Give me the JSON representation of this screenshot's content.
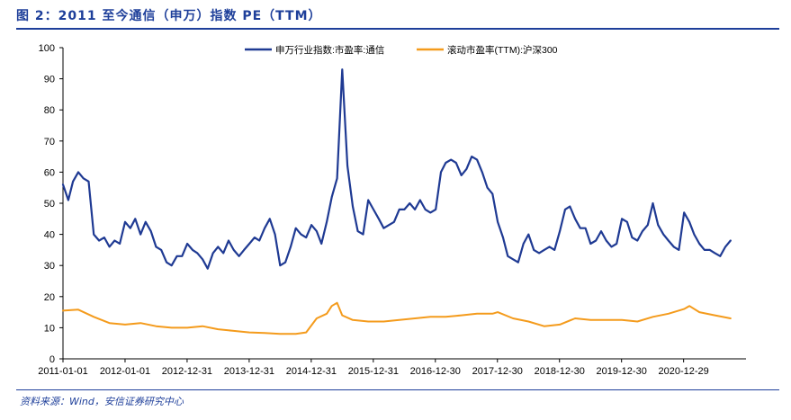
{
  "figure": {
    "title": "图 2：2011 至今通信（申万）指数 PE（TTM）",
    "source": "资料来源：Wind，安信证券研究中心"
  },
  "colors": {
    "series1": "#1f3a93",
    "series2": "#f49b1c",
    "title": "#1e3f9a"
  },
  "chart_data": {
    "type": "line",
    "ylim": [
      0,
      100
    ],
    "yticks": [
      0,
      10,
      20,
      30,
      40,
      50,
      60,
      70,
      80,
      90,
      100
    ],
    "xlim": [
      "2011-01-01",
      "2021-12-31"
    ],
    "xticks": [
      "2011-01-01",
      "2012-01-01",
      "2012-12-31",
      "2013-12-31",
      "2014-12-31",
      "2015-12-31",
      "2016-12-30",
      "2017-12-30",
      "2018-12-30",
      "2019-12-30",
      "2020-12-29"
    ],
    "legend_position": "top-center",
    "grid": false,
    "series": [
      {
        "name": "申万行业指数:市盈率:通信",
        "x": [
          "2011-01-01",
          "2011-02-01",
          "2011-03-01",
          "2011-04-01",
          "2011-05-01",
          "2011-06-01",
          "2011-07-01",
          "2011-08-01",
          "2011-09-01",
          "2011-10-01",
          "2011-11-01",
          "2011-12-01",
          "2012-01-01",
          "2012-02-01",
          "2012-03-01",
          "2012-04-01",
          "2012-05-01",
          "2012-06-01",
          "2012-07-01",
          "2012-08-01",
          "2012-09-01",
          "2012-10-01",
          "2012-11-01",
          "2012-12-01",
          "2013-01-01",
          "2013-02-01",
          "2013-03-01",
          "2013-04-01",
          "2013-05-01",
          "2013-06-01",
          "2013-07-01",
          "2013-08-01",
          "2013-09-01",
          "2013-10-01",
          "2013-11-01",
          "2013-12-01",
          "2014-01-01",
          "2014-02-01",
          "2014-03-01",
          "2014-04-01",
          "2014-05-01",
          "2014-06-01",
          "2014-07-01",
          "2014-08-01",
          "2014-09-01",
          "2014-10-01",
          "2014-11-01",
          "2014-12-01",
          "2015-01-01",
          "2015-02-01",
          "2015-03-01",
          "2015-04-01",
          "2015-05-01",
          "2015-06-01",
          "2015-07-01",
          "2015-08-01",
          "2015-09-01",
          "2015-10-01",
          "2015-11-01",
          "2015-12-01",
          "2016-01-01",
          "2016-02-01",
          "2016-03-01",
          "2016-04-01",
          "2016-05-01",
          "2016-06-01",
          "2016-07-01",
          "2016-08-01",
          "2016-09-01",
          "2016-10-01",
          "2016-11-01",
          "2016-12-01",
          "2017-01-01",
          "2017-02-01",
          "2017-03-01",
          "2017-04-01",
          "2017-05-01",
          "2017-06-01",
          "2017-07-01",
          "2017-08-01",
          "2017-09-01",
          "2017-10-01",
          "2017-11-01",
          "2017-12-01",
          "2018-01-01",
          "2018-02-01",
          "2018-03-01",
          "2018-04-01",
          "2018-05-01",
          "2018-06-01",
          "2018-07-01",
          "2018-08-01",
          "2018-09-01",
          "2018-10-01",
          "2018-11-01",
          "2018-12-01",
          "2019-01-01",
          "2019-02-01",
          "2019-03-01",
          "2019-04-01",
          "2019-05-01",
          "2019-06-01",
          "2019-07-01",
          "2019-08-01",
          "2019-09-01",
          "2019-10-01",
          "2019-11-01",
          "2019-12-01",
          "2020-01-01",
          "2020-02-01",
          "2020-03-01",
          "2020-04-01",
          "2020-05-01",
          "2020-06-01",
          "2020-07-01",
          "2020-08-01",
          "2020-09-01",
          "2020-10-01",
          "2020-11-01",
          "2020-12-01",
          "2021-01-01",
          "2021-02-01",
          "2021-03-01",
          "2021-04-01",
          "2021-05-01",
          "2021-06-01",
          "2021-07-01",
          "2021-08-01",
          "2021-09-01",
          "2021-10-01"
        ],
        "values": [
          56,
          51,
          57,
          60,
          58,
          57,
          40,
          38,
          39,
          36,
          38,
          37,
          44,
          42,
          45,
          40,
          44,
          41,
          36,
          35,
          31,
          30,
          33,
          33,
          37,
          35,
          34,
          32,
          29,
          34,
          36,
          34,
          38,
          35,
          33,
          35,
          37,
          39,
          38,
          42,
          45,
          40,
          30,
          31,
          36,
          42,
          40,
          39,
          43,
          41,
          37,
          44,
          52,
          58,
          93,
          62,
          49,
          41,
          40,
          51,
          48,
          45,
          42,
          43,
          44,
          48,
          48,
          50,
          48,
          51,
          48,
          47,
          48,
          60,
          63,
          64,
          63,
          59,
          61,
          65,
          64,
          60,
          55,
          53,
          44,
          39,
          33,
          32,
          31,
          37,
          40,
          35,
          34,
          35,
          36,
          35,
          41,
          48,
          49,
          45,
          42,
          42,
          37,
          38,
          41,
          38,
          36,
          37,
          45,
          44,
          39,
          38,
          41,
          43,
          50,
          43,
          40,
          38,
          36,
          35,
          47,
          44,
          40,
          37,
          35,
          35,
          34,
          33,
          36,
          38
        ]
      },
      {
        "name": "滚动市盈率(TTM):沪深300",
        "x": [
          "2011-01-01",
          "2011-04-01",
          "2011-07-01",
          "2011-10-01",
          "2012-01-01",
          "2012-04-01",
          "2012-07-01",
          "2012-10-01",
          "2013-01-01",
          "2013-04-01",
          "2013-07-01",
          "2013-10-01",
          "2014-01-01",
          "2014-04-01",
          "2014-07-01",
          "2014-10-01",
          "2014-12-01",
          "2015-02-01",
          "2015-04-01",
          "2015-05-01",
          "2015-06-01",
          "2015-07-01",
          "2015-09-01",
          "2015-12-01",
          "2016-03-01",
          "2016-06-01",
          "2016-09-01",
          "2016-12-01",
          "2017-03-01",
          "2017-06-01",
          "2017-09-01",
          "2017-12-01",
          "2018-01-01",
          "2018-04-01",
          "2018-07-01",
          "2018-10-01",
          "2019-01-01",
          "2019-04-01",
          "2019-07-01",
          "2019-10-01",
          "2020-01-01",
          "2020-04-01",
          "2020-07-01",
          "2020-10-01",
          "2021-01-01",
          "2021-02-01",
          "2021-04-01",
          "2021-07-01",
          "2021-10-01"
        ],
        "values": [
          15.5,
          15.8,
          13.5,
          11.5,
          11,
          11.5,
          10.5,
          10,
          10,
          10.5,
          9.5,
          9,
          8.5,
          8.3,
          8,
          8,
          8.5,
          13,
          14.5,
          17,
          18,
          14,
          12.5,
          12,
          12,
          12.5,
          13,
          13.5,
          13.5,
          14,
          14.5,
          14.5,
          15,
          13,
          12,
          10.5,
          11,
          13,
          12.5,
          12.5,
          12.5,
          12,
          13.5,
          14.5,
          16,
          17,
          15,
          14,
          13
        ]
      }
    ]
  }
}
